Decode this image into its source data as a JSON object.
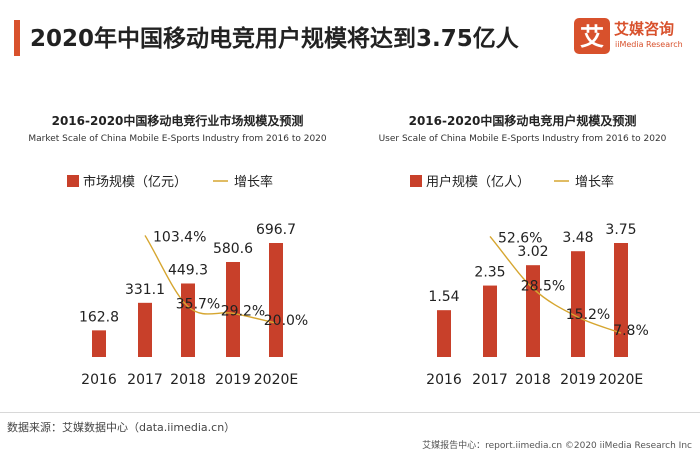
{
  "header": {
    "title": "2020年中国移动电竞用户规模将达到3.75亿人"
  },
  "brand": {
    "name_cn": "艾媒咨询",
    "name_en": "iiMedia Research",
    "mark": "艾"
  },
  "colors": {
    "accent": "#d8512c",
    "bar": "#c8402a",
    "line": "#d6a630",
    "text": "#222222"
  },
  "charts": [
    {
      "title": "2016-2020中国移动电竞行业市场规模及预测",
      "subtitle": "Market Scale of China Mobile E-Sports Industry from 2016 to 2020",
      "legend_bar": "市场规模（亿元）",
      "legend_line": "增长率"
    },
    {
      "title": "2016-2020中国移动电竞用户规模及预测",
      "subtitle": "User Scale of China Mobile E-Sports Industry from 2016 to 2020",
      "legend_bar": "用户规模（亿人）",
      "legend_line": "增长率"
    }
  ],
  "chart_data": [
    {
      "type": "bar",
      "categories": [
        "2016",
        "2017",
        "2018",
        "2019",
        "2020E"
      ],
      "series": [
        {
          "name": "市场规模（亿元）",
          "type": "bar",
          "values": [
            162.8,
            331.1,
            449.3,
            580.6,
            696.7
          ],
          "labels": [
            "162.8",
            "331.1",
            "449.3",
            "580.6",
            "696.7"
          ]
        },
        {
          "name": "增长率",
          "type": "line",
          "values": [
            null,
            103.4,
            35.7,
            29.2,
            20.0
          ],
          "labels": [
            "",
            "103.4%",
            "35.7%",
            "29.2%",
            "20.0%"
          ]
        }
      ]
    },
    {
      "type": "bar",
      "categories": [
        "2016",
        "2017",
        "2018",
        "2019",
        "2020E"
      ],
      "series": [
        {
          "name": "用户规模（亿人）",
          "type": "bar",
          "values": [
            1.54,
            2.35,
            3.02,
            3.48,
            3.75
          ],
          "labels": [
            "1.54",
            "2.35",
            "3.02",
            "3.48",
            "3.75"
          ]
        },
        {
          "name": "增长率",
          "type": "line",
          "values": [
            null,
            52.6,
            28.5,
            15.2,
            7.8
          ],
          "labels": [
            "",
            "52.6%",
            "28.5%",
            "15.2%",
            "7.8%"
          ]
        }
      ]
    }
  ],
  "source": "数据来源：艾媒数据中心（data.iimedia.cn）",
  "footer": "艾媒报告中心：report.iimedia.cn ©2020 iiMedia Research Inc"
}
